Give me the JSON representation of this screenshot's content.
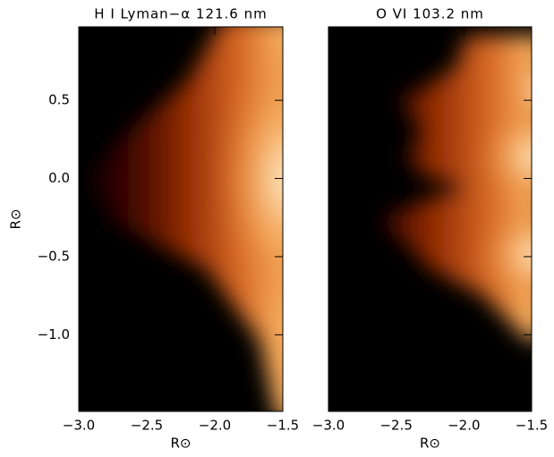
{
  "chart_data": [
    {
      "type": "image",
      "title": "H I Lyman−α 121.6 nm",
      "xlabel": "R⊙",
      "ylabel": "R⊙",
      "xlim": [
        -3,
        -1.5
      ],
      "ylim": [
        -1.49,
        0.97
      ],
      "xticks": [
        {
          "value": -3,
          "label": "−3.0"
        },
        {
          "value": -2.5,
          "label": "−2.5"
        },
        {
          "value": -2,
          "label": "−2.0"
        },
        {
          "value": -1.5,
          "label": "−1.5"
        }
      ],
      "yticks": [
        0.5,
        {
          "value": 0,
          "label": "0.0"
        },
        {
          "value": -0.5,
          "label": "−0.5"
        },
        {
          "value": -1,
          "label": "−1.0"
        }
      ]
    },
    {
      "type": "image",
      "title": "O VI 103.2 nm",
      "xlabel": "R⊙",
      "xlim": [
        -3,
        -1.5
      ],
      "ylim": [
        -1.49,
        0.97
      ],
      "xticks": [
        {
          "value": -3,
          "label": "−3.0"
        },
        {
          "value": -2.5,
          "label": "−2.5"
        },
        {
          "value": -2,
          "label": "−2.0"
        },
        {
          "value": -1.5,
          "label": "−1.5"
        }
      ],
      "yticks": [
        0.5,
        0,
        -0.5,
        -1
      ]
    }
  ]
}
